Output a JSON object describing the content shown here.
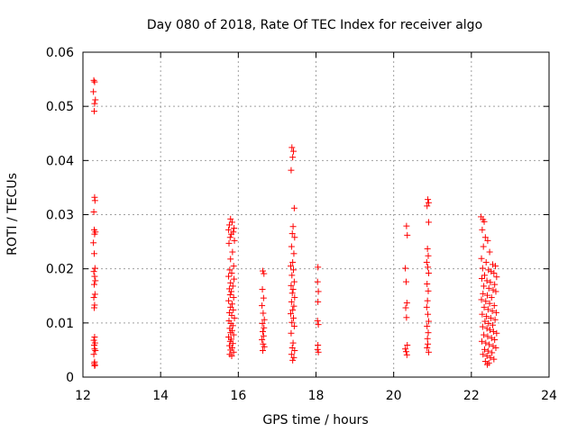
{
  "chart_data": {
    "type": "scatter",
    "title": "Day 080 of 2018, Rate Of TEC Index for receiver algo",
    "xlabel": "GPS time / hours",
    "ylabel": "ROTI / TECUs",
    "xlim": [
      12,
      24
    ],
    "ylim": [
      0,
      0.06
    ],
    "xticks": [
      12,
      14,
      16,
      18,
      20,
      22,
      24
    ],
    "xtick_labels": [
      "12",
      "14",
      "16",
      "18",
      "20",
      "22",
      "24"
    ],
    "yticks": [
      0,
      0.01,
      0.02,
      0.03,
      0.04,
      0.05,
      0.06
    ],
    "ytick_labels": [
      "0",
      "0.01",
      "0.02",
      "0.03",
      "0.04",
      "0.05",
      "0.06"
    ],
    "grid": true,
    "marker": "+",
    "color": "#ff0000",
    "series": [
      {
        "name": "ROTI",
        "points": [
          [
            12.28,
            0.0548
          ],
          [
            12.3,
            0.0545
          ],
          [
            12.27,
            0.0527
          ],
          [
            12.32,
            0.0512
          ],
          [
            12.3,
            0.0505
          ],
          [
            12.29,
            0.0491
          ],
          [
            12.3,
            0.0332
          ],
          [
            12.31,
            0.0326
          ],
          [
            12.28,
            0.0305
          ],
          [
            12.29,
            0.0272
          ],
          [
            12.32,
            0.0268
          ],
          [
            12.3,
            0.0264
          ],
          [
            12.27,
            0.0248
          ],
          [
            12.29,
            0.0228
          ],
          [
            12.31,
            0.0201
          ],
          [
            12.28,
            0.0195
          ],
          [
            12.3,
            0.0186
          ],
          [
            12.32,
            0.0178
          ],
          [
            12.29,
            0.0171
          ],
          [
            12.31,
            0.0153
          ],
          [
            12.28,
            0.0147
          ],
          [
            12.3,
            0.0133
          ],
          [
            12.29,
            0.0128
          ],
          [
            12.3,
            0.0074
          ],
          [
            12.28,
            0.0068
          ],
          [
            12.31,
            0.0063
          ],
          [
            12.29,
            0.0059
          ],
          [
            12.3,
            0.0052
          ],
          [
            12.32,
            0.0049
          ],
          [
            12.28,
            0.0042
          ],
          [
            12.3,
            0.0028
          ],
          [
            12.29,
            0.0025
          ],
          [
            12.31,
            0.0022
          ],
          [
            12.3,
            0.0021
          ],
          [
            15.8,
            0.0292
          ],
          [
            15.84,
            0.0286
          ],
          [
            15.77,
            0.0281
          ],
          [
            15.89,
            0.0275
          ],
          [
            15.75,
            0.0272
          ],
          [
            15.87,
            0.0268
          ],
          [
            15.82,
            0.0264
          ],
          [
            15.79,
            0.0258
          ],
          [
            15.9,
            0.0252
          ],
          [
            15.76,
            0.0247
          ],
          [
            15.85,
            0.0231
          ],
          [
            15.8,
            0.0218
          ],
          [
            15.88,
            0.0205
          ],
          [
            15.78,
            0.0198
          ],
          [
            15.83,
            0.0192
          ],
          [
            15.75,
            0.0186
          ],
          [
            15.89,
            0.0181
          ],
          [
            15.8,
            0.0174
          ],
          [
            15.86,
            0.0168
          ],
          [
            15.77,
            0.0163
          ],
          [
            15.82,
            0.0158
          ],
          [
            15.79,
            0.0152
          ],
          [
            15.88,
            0.0147
          ],
          [
            15.75,
            0.0141
          ],
          [
            15.84,
            0.0135
          ],
          [
            15.8,
            0.0129
          ],
          [
            15.87,
            0.0124
          ],
          [
            15.77,
            0.0119
          ],
          [
            15.83,
            0.0114
          ],
          [
            15.9,
            0.0109
          ],
          [
            15.76,
            0.0104
          ],
          [
            15.81,
            0.0099
          ],
          [
            15.86,
            0.0095
          ],
          [
            15.78,
            0.009
          ],
          [
            15.84,
            0.0086
          ],
          [
            15.8,
            0.0082
          ],
          [
            15.88,
            0.0078
          ],
          [
            15.75,
            0.0074
          ],
          [
            15.82,
            0.007
          ],
          [
            15.79,
            0.0066
          ],
          [
            15.86,
            0.0062
          ],
          [
            15.77,
            0.0058
          ],
          [
            15.84,
            0.0054
          ],
          [
            15.8,
            0.005
          ],
          [
            15.88,
            0.0046
          ],
          [
            15.78,
            0.0042
          ],
          [
            15.83,
            0.0039
          ],
          [
            16.63,
            0.0196
          ],
          [
            16.66,
            0.0191
          ],
          [
            16.62,
            0.0162
          ],
          [
            16.65,
            0.0146
          ],
          [
            16.61,
            0.0132
          ],
          [
            16.64,
            0.0118
          ],
          [
            16.67,
            0.0106
          ],
          [
            16.62,
            0.0099
          ],
          [
            16.66,
            0.0091
          ],
          [
            16.63,
            0.0084
          ],
          [
            16.65,
            0.0076
          ],
          [
            16.61,
            0.0069
          ],
          [
            16.64,
            0.0061
          ],
          [
            16.67,
            0.0056
          ],
          [
            16.63,
            0.0049
          ],
          [
            17.38,
            0.0424
          ],
          [
            17.42,
            0.0417
          ],
          [
            17.4,
            0.0406
          ],
          [
            17.36,
            0.0382
          ],
          [
            17.44,
            0.0312
          ],
          [
            17.41,
            0.0278
          ],
          [
            17.39,
            0.0265
          ],
          [
            17.45,
            0.0258
          ],
          [
            17.37,
            0.0241
          ],
          [
            17.43,
            0.0228
          ],
          [
            17.4,
            0.0212
          ],
          [
            17.35,
            0.0205
          ],
          [
            17.42,
            0.0198
          ],
          [
            17.38,
            0.0188
          ],
          [
            17.44,
            0.0176
          ],
          [
            17.36,
            0.0169
          ],
          [
            17.41,
            0.0162
          ],
          [
            17.39,
            0.0155
          ],
          [
            17.45,
            0.0147
          ],
          [
            17.37,
            0.0139
          ],
          [
            17.43,
            0.0131
          ],
          [
            17.4,
            0.0124
          ],
          [
            17.35,
            0.0117
          ],
          [
            17.42,
            0.0109
          ],
          [
            17.38,
            0.0101
          ],
          [
            17.44,
            0.0094
          ],
          [
            17.36,
            0.0081
          ],
          [
            17.41,
            0.0063
          ],
          [
            17.39,
            0.0054
          ],
          [
            17.45,
            0.0049
          ],
          [
            17.37,
            0.0042
          ],
          [
            17.43,
            0.0036
          ],
          [
            17.4,
            0.0031
          ],
          [
            18.05,
            0.0203
          ],
          [
            18.04,
            0.0176
          ],
          [
            18.06,
            0.0158
          ],
          [
            18.05,
            0.0139
          ],
          [
            18.04,
            0.0104
          ],
          [
            18.06,
            0.0097
          ],
          [
            18.05,
            0.0059
          ],
          [
            18.04,
            0.0051
          ],
          [
            18.06,
            0.0046
          ],
          [
            20.33,
            0.0279
          ],
          [
            20.35,
            0.0262
          ],
          [
            20.3,
            0.0201
          ],
          [
            20.32,
            0.0176
          ],
          [
            20.34,
            0.0137
          ],
          [
            20.31,
            0.0128
          ],
          [
            20.33,
            0.011
          ],
          [
            20.35,
            0.0059
          ],
          [
            20.3,
            0.0052
          ],
          [
            20.32,
            0.0047
          ],
          [
            20.34,
            0.0041
          ],
          [
            20.88,
            0.0328
          ],
          [
            20.9,
            0.0322
          ],
          [
            20.86,
            0.0316
          ],
          [
            20.9,
            0.0286
          ],
          [
            20.87,
            0.0237
          ],
          [
            20.89,
            0.0224
          ],
          [
            20.85,
            0.0212
          ],
          [
            20.88,
            0.0203
          ],
          [
            20.9,
            0.0192
          ],
          [
            20.86,
            0.0172
          ],
          [
            20.89,
            0.0159
          ],
          [
            20.87,
            0.0141
          ],
          [
            20.85,
            0.0129
          ],
          [
            20.88,
            0.0116
          ],
          [
            20.9,
            0.0103
          ],
          [
            20.86,
            0.0094
          ],
          [
            20.89,
            0.0082
          ],
          [
            20.87,
            0.0071
          ],
          [
            20.88,
            0.0061
          ],
          [
            20.86,
            0.0054
          ],
          [
            20.9,
            0.0046
          ],
          [
            22.25,
            0.0296
          ],
          [
            22.3,
            0.0291
          ],
          [
            22.33,
            0.0287
          ],
          [
            22.28,
            0.0272
          ],
          [
            22.36,
            0.0258
          ],
          [
            22.42,
            0.0252
          ],
          [
            22.31,
            0.0241
          ],
          [
            22.47,
            0.0231
          ],
          [
            22.26,
            0.0219
          ],
          [
            22.38,
            0.0212
          ],
          [
            22.55,
            0.0208
          ],
          [
            22.62,
            0.0205
          ],
          [
            22.29,
            0.0201
          ],
          [
            22.44,
            0.0198
          ],
          [
            22.51,
            0.0195
          ],
          [
            22.58,
            0.0192
          ],
          [
            22.34,
            0.0188
          ],
          [
            22.65,
            0.0185
          ],
          [
            22.27,
            0.0182
          ],
          [
            22.4,
            0.0178
          ],
          [
            22.49,
            0.0175
          ],
          [
            22.6,
            0.0171
          ],
          [
            22.32,
            0.0168
          ],
          [
            22.45,
            0.0164
          ],
          [
            22.56,
            0.0161
          ],
          [
            22.63,
            0.0158
          ],
          [
            22.3,
            0.0154
          ],
          [
            22.41,
            0.0151
          ],
          [
            22.52,
            0.0147
          ],
          [
            22.26,
            0.0143
          ],
          [
            22.37,
            0.014
          ],
          [
            22.47,
            0.0136
          ],
          [
            22.59,
            0.0132
          ],
          [
            22.33,
            0.0129
          ],
          [
            22.43,
            0.0125
          ],
          [
            22.54,
            0.0122
          ],
          [
            22.64,
            0.0119
          ],
          [
            22.28,
            0.0116
          ],
          [
            22.39,
            0.0112
          ],
          [
            22.5,
            0.0109
          ],
          [
            22.61,
            0.0106
          ],
          [
            22.35,
            0.0103
          ],
          [
            22.44,
            0.0099
          ],
          [
            22.55,
            0.0096
          ],
          [
            22.29,
            0.0093
          ],
          [
            22.4,
            0.009
          ],
          [
            22.48,
            0.0087
          ],
          [
            22.57,
            0.0084
          ],
          [
            22.65,
            0.0081
          ],
          [
            22.32,
            0.0078
          ],
          [
            22.42,
            0.0075
          ],
          [
            22.52,
            0.0072
          ],
          [
            22.6,
            0.0069
          ],
          [
            22.27,
            0.0066
          ],
          [
            22.37,
            0.0063
          ],
          [
            22.46,
            0.006
          ],
          [
            22.56,
            0.0057
          ],
          [
            22.63,
            0.0054
          ],
          [
            22.34,
            0.0051
          ],
          [
            22.43,
            0.0048
          ],
          [
            22.53,
            0.0045
          ],
          [
            22.3,
            0.0042
          ],
          [
            22.4,
            0.0039
          ],
          [
            22.49,
            0.0036
          ],
          [
            22.58,
            0.0033
          ],
          [
            22.36,
            0.0029
          ],
          [
            22.45,
            0.0026
          ],
          [
            22.41,
            0.0023
          ]
        ]
      }
    ]
  }
}
